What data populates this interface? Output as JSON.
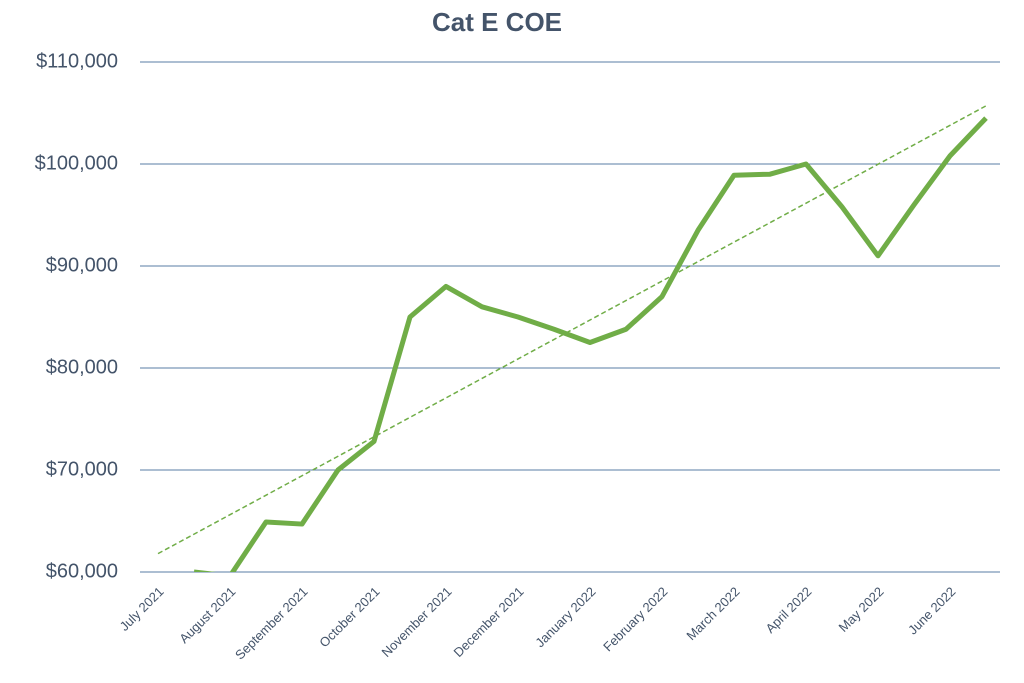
{
  "chart_data": {
    "type": "line",
    "title": "Cat E COE",
    "categories": [
      "July 2021",
      null,
      "August 2021",
      null,
      "September 2021",
      null,
      "October 2021",
      null,
      "November 2021",
      null,
      "December 2021",
      null,
      "January 2022",
      null,
      "February 2022",
      null,
      "March 2022",
      null,
      "April 2022",
      null,
      "May 2022",
      null,
      "June 2022",
      null
    ],
    "series": [
      {
        "color": "#70ad47",
        "values": [
          null,
          60000,
          59600,
          64900,
          64700,
          70000,
          72800,
          85000,
          88000,
          86000,
          85000,
          83800,
          82500,
          83800,
          87000,
          93500,
          98900,
          99000,
          100000,
          95800,
          91000,
          96000,
          100800,
          104500
        ]
      }
    ],
    "trendline": {
      "color": "#70ad47",
      "values": [
        61800,
        105700
      ]
    },
    "ylim": [
      60000,
      110000
    ],
    "yticks": [
      {
        "value": 60000,
        "label": "$60,000"
      },
      {
        "value": 70000,
        "label": "$70,000"
      },
      {
        "value": 80000,
        "label": "$80,000"
      },
      {
        "value": 90000,
        "label": "$90,000"
      },
      {
        "value": 100000,
        "label": "$100,000"
      },
      {
        "value": 110000,
        "label": "$110,000"
      }
    ],
    "grid": true
  }
}
